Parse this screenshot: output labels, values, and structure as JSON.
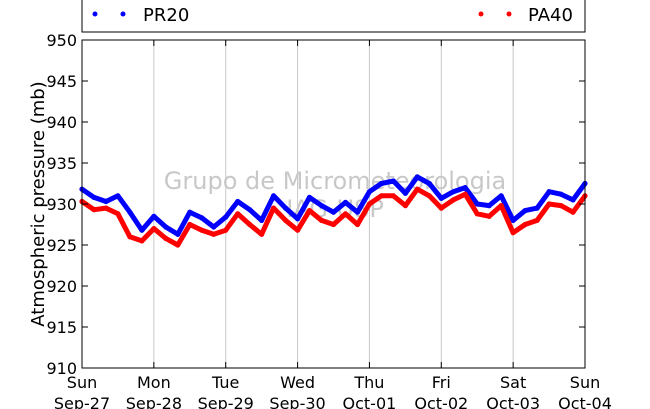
{
  "chart_data": {
    "type": "line",
    "title": "",
    "xlabel": "",
    "ylabel": "Atmospheric pressure (mb)",
    "ylim": [
      910,
      950
    ],
    "yticks": [
      910,
      915,
      920,
      925,
      930,
      935,
      940,
      945,
      950
    ],
    "xlim": [
      "2015-09-27",
      "2015-10-04"
    ],
    "grid": "vertical",
    "legend_position": "top",
    "xtick_labels": [
      {
        "day": "Sun",
        "date": "Sep-27"
      },
      {
        "day": "Mon",
        "date": "Sep-28"
      },
      {
        "day": "Tue",
        "date": "Sep-29"
      },
      {
        "day": "Wed",
        "date": "Sep-30"
      },
      {
        "day": "Thu",
        "date": "Oct-01"
      },
      {
        "day": "Fri",
        "date": "Oct-02"
      },
      {
        "day": "Sat",
        "date": "Oct-03"
      },
      {
        "day": "Sun",
        "date": "Oct-04"
      }
    ],
    "watermark": [
      "Grupo de Micrometeorologia",
      "IAG-USP"
    ],
    "series": [
      {
        "name": "PR20",
        "color": "#0000ff",
        "x": [
          "2015-09-27T00:00",
          "2015-09-27T04:00",
          "2015-09-27T08:00",
          "2015-09-27T12:00",
          "2015-09-27T16:00",
          "2015-09-27T20:00",
          "2015-09-28T00:00",
          "2015-09-28T04:00",
          "2015-09-28T08:00",
          "2015-09-28T12:00",
          "2015-09-28T16:00",
          "2015-09-28T20:00",
          "2015-09-29T00:00",
          "2015-09-29T04:00",
          "2015-09-29T08:00",
          "2015-09-29T12:00",
          "2015-09-29T16:00",
          "2015-09-29T20:00",
          "2015-09-30T00:00",
          "2015-09-30T04:00",
          "2015-09-30T08:00",
          "2015-09-30T12:00",
          "2015-09-30T16:00",
          "2015-09-30T20:00",
          "2015-10-01T00:00",
          "2015-10-01T04:00",
          "2015-10-01T08:00",
          "2015-10-01T12:00",
          "2015-10-01T16:00",
          "2015-10-01T20:00",
          "2015-10-02T00:00",
          "2015-10-02T04:00",
          "2015-10-02T08:00",
          "2015-10-02T12:00",
          "2015-10-02T16:00",
          "2015-10-02T20:00",
          "2015-10-03T00:00",
          "2015-10-03T04:00",
          "2015-10-03T08:00",
          "2015-10-03T12:00",
          "2015-10-03T16:00",
          "2015-10-03T20:00",
          "2015-10-04T00:00"
        ],
        "y": [
          931.8,
          930.8,
          930.3,
          931.0,
          929.0,
          926.8,
          928.5,
          927.2,
          926.3,
          929.0,
          928.3,
          927.2,
          928.4,
          930.3,
          929.3,
          928.0,
          931.0,
          929.5,
          928.2,
          930.8,
          929.8,
          929.0,
          930.2,
          929.0,
          931.5,
          932.5,
          932.8,
          931.3,
          933.3,
          932.5,
          930.7,
          931.5,
          932.0,
          930.0,
          929.8,
          931.0,
          928.0,
          929.2,
          929.5,
          931.5,
          931.2,
          930.5,
          932.5
        ]
      },
      {
        "name": "PA40",
        "color": "#ff0000",
        "x": [
          "2015-09-27T00:00",
          "2015-09-27T04:00",
          "2015-09-27T08:00",
          "2015-09-27T12:00",
          "2015-09-27T16:00",
          "2015-09-27T20:00",
          "2015-09-28T00:00",
          "2015-09-28T04:00",
          "2015-09-28T08:00",
          "2015-09-28T12:00",
          "2015-09-28T16:00",
          "2015-09-28T20:00",
          "2015-09-29T00:00",
          "2015-09-29T04:00",
          "2015-09-29T08:00",
          "2015-09-29T12:00",
          "2015-09-29T16:00",
          "2015-09-29T20:00",
          "2015-09-30T00:00",
          "2015-09-30T04:00",
          "2015-09-30T08:00",
          "2015-09-30T12:00",
          "2015-09-30T16:00",
          "2015-09-30T20:00",
          "2015-10-01T00:00",
          "2015-10-01T04:00",
          "2015-10-01T08:00",
          "2015-10-01T12:00",
          "2015-10-01T16:00",
          "2015-10-01T20:00",
          "2015-10-02T00:00",
          "2015-10-02T04:00",
          "2015-10-02T08:00",
          "2015-10-02T12:00",
          "2015-10-02T16:00",
          "2015-10-02T20:00",
          "2015-10-03T00:00",
          "2015-10-03T04:00",
          "2015-10-03T08:00",
          "2015-10-03T12:00",
          "2015-10-03T16:00",
          "2015-10-03T20:00",
          "2015-10-04T00:00"
        ],
        "y": [
          930.3,
          929.3,
          929.5,
          928.8,
          926.0,
          925.5,
          927.0,
          925.8,
          925.0,
          927.5,
          926.8,
          926.3,
          926.8,
          928.8,
          927.5,
          926.3,
          929.5,
          928.0,
          926.8,
          929.2,
          928.0,
          927.5,
          928.8,
          927.5,
          930.0,
          931.0,
          931.0,
          929.8,
          931.8,
          931.0,
          929.5,
          930.5,
          931.2,
          928.8,
          928.5,
          929.8,
          926.5,
          927.5,
          928.0,
          930.0,
          929.8,
          929.0,
          931.0
        ]
      }
    ]
  }
}
